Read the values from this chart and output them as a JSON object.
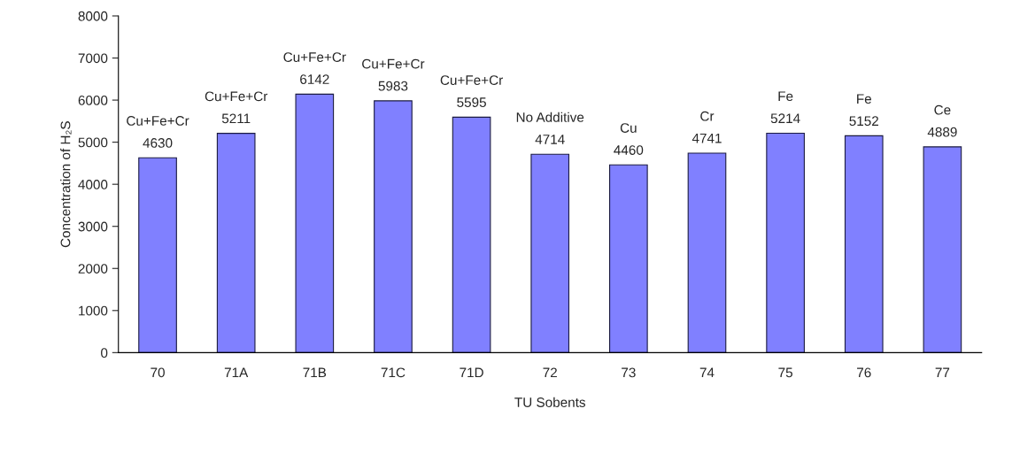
{
  "chart_data": {
    "type": "bar",
    "xlabel": "TU Sobents",
    "ylabel": "Concentration of H₂S",
    "categories": [
      "70",
      "71A",
      "71B",
      "71C",
      "71D",
      "72",
      "73",
      "74",
      "75",
      "76",
      "77"
    ],
    "values": [
      4630,
      5211,
      6142,
      5983,
      5595,
      4714,
      4460,
      4741,
      5214,
      5152,
      4889
    ],
    "color": "#8080ff",
    "data_labels": true,
    "ylim": [
      0,
      8000
    ],
    "yticks": [
      0,
      1000,
      2000,
      3000,
      4000,
      5000,
      6000,
      7000,
      8000
    ],
    "grid": false,
    "legend": false,
    "annotations": [
      {
        "text": "Cu+Fe+Cr",
        "x": "70",
        "y": 4630
      },
      {
        "text": "Cu+Fe+Cr",
        "x": "71A",
        "y": 5211
      },
      {
        "text": "Cu+Fe+Cr",
        "x": "71B",
        "y": 6142
      },
      {
        "text": "Cu+Fe+Cr",
        "x": "71C",
        "y": 5983
      },
      {
        "text": "Cu+Fe+Cr",
        "x": "71D",
        "y": 5595
      },
      {
        "text": "No Additive",
        "x": "72",
        "y": 4714
      },
      {
        "text": "Cu",
        "x": "73",
        "y": 4460
      },
      {
        "text": "Cr",
        "x": "74",
        "y": 4741
      },
      {
        "text": "Fe",
        "x": "75",
        "y": 5214
      },
      {
        "text": "Fe",
        "x": "76",
        "y": 5152
      },
      {
        "text": "Ce",
        "x": "77",
        "y": 4889
      }
    ]
  }
}
